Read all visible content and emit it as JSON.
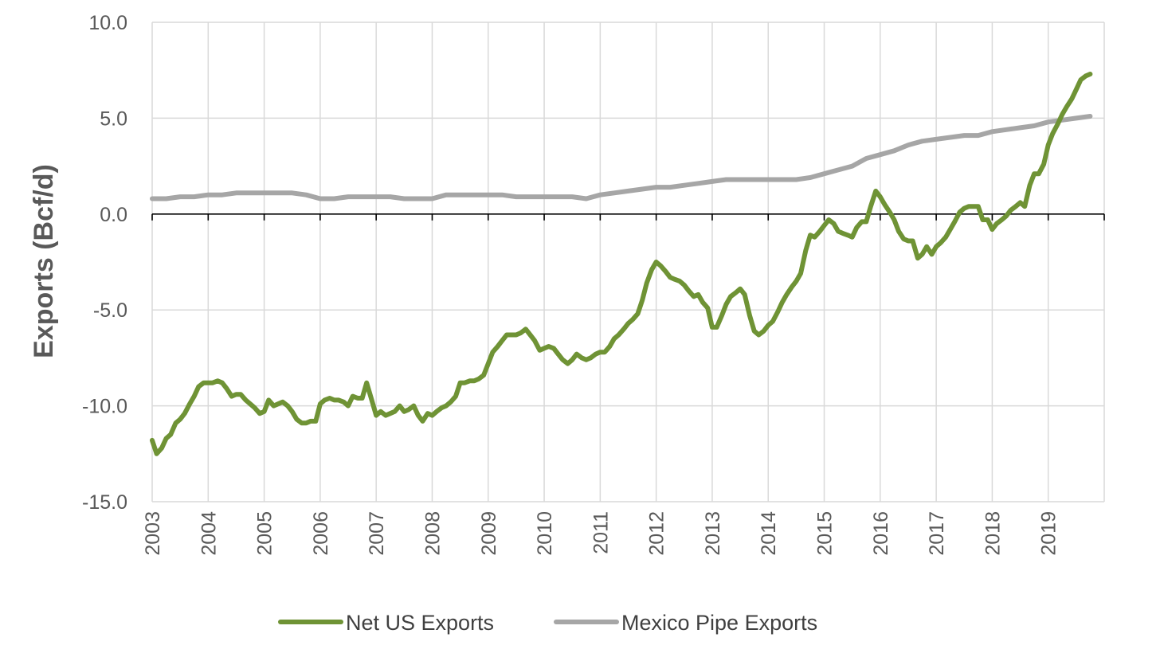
{
  "chart_data": {
    "type": "line",
    "title": "",
    "xlabel": "",
    "ylabel": "Exports (Bcf/d)",
    "ylim": [
      -15,
      10
    ],
    "yticks": [
      "10.0",
      "5.0",
      "0.0",
      "-5.0",
      "-10.0",
      "-15.0"
    ],
    "xlim": [
      2003,
      2020
    ],
    "xticks": [
      "2003",
      "2004",
      "2005",
      "2006",
      "2007",
      "2008",
      "2009",
      "2010",
      "2011",
      "2012",
      "2013",
      "2014",
      "2015",
      "2016",
      "2017",
      "2018",
      "2019"
    ],
    "grid": "vertical and horizontal",
    "legend_position": "bottom",
    "series": [
      {
        "name": "Net US Exports",
        "color": "#6f9335",
        "points": [
          [
            2003.0,
            -11.8
          ],
          [
            2003.08,
            -12.5
          ],
          [
            2003.17,
            -12.2
          ],
          [
            2003.25,
            -11.7
          ],
          [
            2003.33,
            -11.5
          ],
          [
            2003.42,
            -10.9
          ],
          [
            2003.5,
            -10.7
          ],
          [
            2003.58,
            -10.4
          ],
          [
            2003.67,
            -9.9
          ],
          [
            2003.75,
            -9.5
          ],
          [
            2003.83,
            -9.0
          ],
          [
            2003.92,
            -8.8
          ],
          [
            2004.0,
            -8.8
          ],
          [
            2004.08,
            -8.8
          ],
          [
            2004.17,
            -8.7
          ],
          [
            2004.25,
            -8.8
          ],
          [
            2004.33,
            -9.1
          ],
          [
            2004.42,
            -9.5
          ],
          [
            2004.5,
            -9.4
          ],
          [
            2004.58,
            -9.4
          ],
          [
            2004.67,
            -9.7
          ],
          [
            2004.75,
            -9.9
          ],
          [
            2004.83,
            -10.1
          ],
          [
            2004.92,
            -10.4
          ],
          [
            2005.0,
            -10.3
          ],
          [
            2005.08,
            -9.7
          ],
          [
            2005.17,
            -10.0
          ],
          [
            2005.25,
            -9.9
          ],
          [
            2005.33,
            -9.8
          ],
          [
            2005.42,
            -10.0
          ],
          [
            2005.5,
            -10.3
          ],
          [
            2005.58,
            -10.7
          ],
          [
            2005.67,
            -10.9
          ],
          [
            2005.75,
            -10.9
          ],
          [
            2005.83,
            -10.8
          ],
          [
            2005.92,
            -10.8
          ],
          [
            2006.0,
            -9.9
          ],
          [
            2006.08,
            -9.7
          ],
          [
            2006.17,
            -9.6
          ],
          [
            2006.25,
            -9.7
          ],
          [
            2006.33,
            -9.7
          ],
          [
            2006.42,
            -9.8
          ],
          [
            2006.5,
            -10.0
          ],
          [
            2006.58,
            -9.5
          ],
          [
            2006.67,
            -9.6
          ],
          [
            2006.75,
            -9.6
          ],
          [
            2006.83,
            -8.8
          ],
          [
            2006.92,
            -9.7
          ],
          [
            2007.0,
            -10.5
          ],
          [
            2007.08,
            -10.3
          ],
          [
            2007.17,
            -10.5
          ],
          [
            2007.25,
            -10.4
          ],
          [
            2007.33,
            -10.3
          ],
          [
            2007.42,
            -10.0
          ],
          [
            2007.5,
            -10.3
          ],
          [
            2007.58,
            -10.2
          ],
          [
            2007.67,
            -10.0
          ],
          [
            2007.75,
            -10.5
          ],
          [
            2007.83,
            -10.8
          ],
          [
            2007.92,
            -10.4
          ],
          [
            2008.0,
            -10.5
          ],
          [
            2008.08,
            -10.3
          ],
          [
            2008.17,
            -10.1
          ],
          [
            2008.25,
            -10.0
          ],
          [
            2008.33,
            -9.8
          ],
          [
            2008.42,
            -9.5
          ],
          [
            2008.5,
            -8.8
          ],
          [
            2008.58,
            -8.8
          ],
          [
            2008.67,
            -8.7
          ],
          [
            2008.75,
            -8.7
          ],
          [
            2008.83,
            -8.6
          ],
          [
            2008.92,
            -8.4
          ],
          [
            2009.0,
            -7.8
          ],
          [
            2009.08,
            -7.2
          ],
          [
            2009.17,
            -6.9
          ],
          [
            2009.25,
            -6.6
          ],
          [
            2009.33,
            -6.3
          ],
          [
            2009.42,
            -6.3
          ],
          [
            2009.5,
            -6.3
          ],
          [
            2009.58,
            -6.2
          ],
          [
            2009.67,
            -6.0
          ],
          [
            2009.75,
            -6.3
          ],
          [
            2009.83,
            -6.6
          ],
          [
            2009.92,
            -7.1
          ],
          [
            2010.0,
            -7.0
          ],
          [
            2010.08,
            -6.9
          ],
          [
            2010.17,
            -7.0
          ],
          [
            2010.25,
            -7.3
          ],
          [
            2010.33,
            -7.6
          ],
          [
            2010.42,
            -7.8
          ],
          [
            2010.5,
            -7.6
          ],
          [
            2010.58,
            -7.3
          ],
          [
            2010.67,
            -7.5
          ],
          [
            2010.75,
            -7.6
          ],
          [
            2010.83,
            -7.5
          ],
          [
            2010.92,
            -7.3
          ],
          [
            2011.0,
            -7.2
          ],
          [
            2011.08,
            -7.2
          ],
          [
            2011.17,
            -6.9
          ],
          [
            2011.25,
            -6.5
          ],
          [
            2011.33,
            -6.3
          ],
          [
            2011.42,
            -6.0
          ],
          [
            2011.5,
            -5.7
          ],
          [
            2011.58,
            -5.5
          ],
          [
            2011.67,
            -5.2
          ],
          [
            2011.75,
            -4.5
          ],
          [
            2011.83,
            -3.6
          ],
          [
            2011.92,
            -2.9
          ],
          [
            2012.0,
            -2.5
          ],
          [
            2012.08,
            -2.7
          ],
          [
            2012.17,
            -3.0
          ],
          [
            2012.25,
            -3.3
          ],
          [
            2012.33,
            -3.4
          ],
          [
            2012.42,
            -3.5
          ],
          [
            2012.5,
            -3.7
          ],
          [
            2012.58,
            -4.0
          ],
          [
            2012.67,
            -4.3
          ],
          [
            2012.75,
            -4.2
          ],
          [
            2012.83,
            -4.6
          ],
          [
            2012.92,
            -4.9
          ],
          [
            2013.0,
            -5.9
          ],
          [
            2013.08,
            -5.9
          ],
          [
            2013.17,
            -5.3
          ],
          [
            2013.25,
            -4.7
          ],
          [
            2013.33,
            -4.3
          ],
          [
            2013.42,
            -4.1
          ],
          [
            2013.5,
            -3.9
          ],
          [
            2013.58,
            -4.2
          ],
          [
            2013.67,
            -5.3
          ],
          [
            2013.75,
            -6.1
          ],
          [
            2013.83,
            -6.3
          ],
          [
            2013.92,
            -6.1
          ],
          [
            2014.0,
            -5.8
          ],
          [
            2014.08,
            -5.6
          ],
          [
            2014.17,
            -5.1
          ],
          [
            2014.25,
            -4.6
          ],
          [
            2014.33,
            -4.2
          ],
          [
            2014.42,
            -3.8
          ],
          [
            2014.5,
            -3.5
          ],
          [
            2014.58,
            -3.1
          ],
          [
            2014.67,
            -1.9
          ],
          [
            2014.75,
            -1.1
          ],
          [
            2014.83,
            -1.2
          ],
          [
            2014.92,
            -0.9
          ],
          [
            2015.0,
            -0.6
          ],
          [
            2015.08,
            -0.3
          ],
          [
            2015.17,
            -0.5
          ],
          [
            2015.25,
            -0.9
          ],
          [
            2015.33,
            -1.0
          ],
          [
            2015.42,
            -1.1
          ],
          [
            2015.5,
            -1.2
          ],
          [
            2015.58,
            -0.7
          ],
          [
            2015.67,
            -0.4
          ],
          [
            2015.75,
            -0.4
          ],
          [
            2015.83,
            0.4
          ],
          [
            2015.92,
            1.2
          ],
          [
            2016.0,
            0.9
          ],
          [
            2016.08,
            0.5
          ],
          [
            2016.17,
            0.1
          ],
          [
            2016.25,
            -0.3
          ],
          [
            2016.33,
            -0.9
          ],
          [
            2016.42,
            -1.3
          ],
          [
            2016.5,
            -1.4
          ],
          [
            2016.58,
            -1.4
          ],
          [
            2016.67,
            -2.3
          ],
          [
            2016.75,
            -2.1
          ],
          [
            2016.83,
            -1.7
          ],
          [
            2016.92,
            -2.1
          ],
          [
            2017.0,
            -1.7
          ],
          [
            2017.08,
            -1.5
          ],
          [
            2017.17,
            -1.2
          ],
          [
            2017.25,
            -0.8
          ],
          [
            2017.33,
            -0.4
          ],
          [
            2017.42,
            0.1
          ],
          [
            2017.5,
            0.3
          ],
          [
            2017.58,
            0.4
          ],
          [
            2017.67,
            0.4
          ],
          [
            2017.75,
            0.4
          ],
          [
            2017.83,
            -0.3
          ],
          [
            2017.92,
            -0.3
          ],
          [
            2018.0,
            -0.8
          ],
          [
            2018.08,
            -0.5
          ],
          [
            2018.17,
            -0.3
          ],
          [
            2018.25,
            -0.1
          ],
          [
            2018.33,
            0.2
          ],
          [
            2018.42,
            0.4
          ],
          [
            2018.5,
            0.6
          ],
          [
            2018.58,
            0.4
          ],
          [
            2018.67,
            1.5
          ],
          [
            2018.75,
            2.1
          ],
          [
            2018.83,
            2.1
          ],
          [
            2018.92,
            2.6
          ],
          [
            2019.0,
            3.6
          ],
          [
            2019.08,
            4.2
          ],
          [
            2019.17,
            4.7
          ],
          [
            2019.25,
            5.2
          ],
          [
            2019.33,
            5.6
          ],
          [
            2019.42,
            6.0
          ],
          [
            2019.5,
            6.5
          ],
          [
            2019.58,
            7.0
          ],
          [
            2019.67,
            7.2
          ],
          [
            2019.75,
            7.3
          ]
        ]
      },
      {
        "name": "Mexico Pipe Exports",
        "color": "#a6a6a6",
        "points": [
          [
            2003.0,
            0.8
          ],
          [
            2003.25,
            0.8
          ],
          [
            2003.5,
            0.9
          ],
          [
            2003.75,
            0.9
          ],
          [
            2004.0,
            1.0
          ],
          [
            2004.25,
            1.0
          ],
          [
            2004.5,
            1.1
          ],
          [
            2004.75,
            1.1
          ],
          [
            2005.0,
            1.1
          ],
          [
            2005.25,
            1.1
          ],
          [
            2005.5,
            1.1
          ],
          [
            2005.75,
            1.0
          ],
          [
            2006.0,
            0.8
          ],
          [
            2006.25,
            0.8
          ],
          [
            2006.5,
            0.9
          ],
          [
            2006.75,
            0.9
          ],
          [
            2007.0,
            0.9
          ],
          [
            2007.25,
            0.9
          ],
          [
            2007.5,
            0.8
          ],
          [
            2007.75,
            0.8
          ],
          [
            2008.0,
            0.8
          ],
          [
            2008.25,
            1.0
          ],
          [
            2008.5,
            1.0
          ],
          [
            2008.75,
            1.0
          ],
          [
            2009.0,
            1.0
          ],
          [
            2009.25,
            1.0
          ],
          [
            2009.5,
            0.9
          ],
          [
            2009.75,
            0.9
          ],
          [
            2010.0,
            0.9
          ],
          [
            2010.25,
            0.9
          ],
          [
            2010.5,
            0.9
          ],
          [
            2010.75,
            0.8
          ],
          [
            2011.0,
            1.0
          ],
          [
            2011.25,
            1.1
          ],
          [
            2011.5,
            1.2
          ],
          [
            2011.75,
            1.3
          ],
          [
            2012.0,
            1.4
          ],
          [
            2012.25,
            1.4
          ],
          [
            2012.5,
            1.5
          ],
          [
            2012.75,
            1.6
          ],
          [
            2013.0,
            1.7
          ],
          [
            2013.25,
            1.8
          ],
          [
            2013.5,
            1.8
          ],
          [
            2013.75,
            1.8
          ],
          [
            2014.0,
            1.8
          ],
          [
            2014.25,
            1.8
          ],
          [
            2014.5,
            1.8
          ],
          [
            2014.75,
            1.9
          ],
          [
            2015.0,
            2.1
          ],
          [
            2015.25,
            2.3
          ],
          [
            2015.5,
            2.5
          ],
          [
            2015.75,
            2.9
          ],
          [
            2016.0,
            3.1
          ],
          [
            2016.25,
            3.3
          ],
          [
            2016.5,
            3.6
          ],
          [
            2016.75,
            3.8
          ],
          [
            2017.0,
            3.9
          ],
          [
            2017.25,
            4.0
          ],
          [
            2017.5,
            4.1
          ],
          [
            2017.75,
            4.1
          ],
          [
            2018.0,
            4.3
          ],
          [
            2018.25,
            4.4
          ],
          [
            2018.5,
            4.5
          ],
          [
            2018.75,
            4.6
          ],
          [
            2019.0,
            4.8
          ],
          [
            2019.25,
            4.9
          ],
          [
            2019.5,
            5.0
          ],
          [
            2019.75,
            5.1
          ]
        ]
      }
    ],
    "legend": [
      {
        "label": "Net US Exports",
        "color": "#6f9335"
      },
      {
        "label": "Mexico Pipe Exports",
        "color": "#a6a6a6"
      }
    ]
  }
}
